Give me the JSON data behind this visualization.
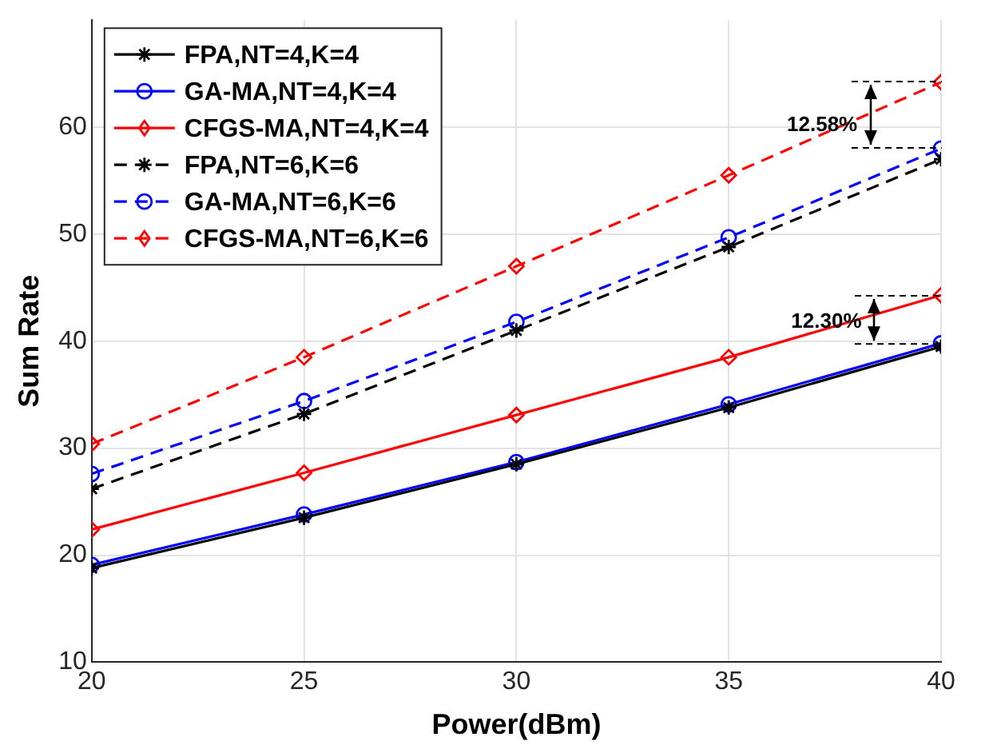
{
  "chart_data": {
    "type": "line",
    "xlabel": "Power(dBm)",
    "ylabel": "Sum Rate",
    "x": [
      20,
      25,
      30,
      35,
      40
    ],
    "xlim": [
      20,
      40
    ],
    "xticks": [
      20,
      25,
      30,
      35,
      40
    ],
    "ylim": [
      10,
      70
    ],
    "yticks": [
      10,
      20,
      30,
      40,
      50,
      60
    ],
    "grid": true,
    "legend": "top left",
    "series": [
      {
        "name": "FPA,NT=4,K=4",
        "color": "#000000",
        "marker": "cross",
        "line_style": "solid",
        "values": [
          18.8,
          23.5,
          28.5,
          33.8,
          39.5
        ]
      },
      {
        "name": "GA-MA,NT=4,K=4",
        "color": "#0000ff",
        "marker": "circle",
        "line_style": "solid",
        "values": [
          19.1,
          23.8,
          28.7,
          34.1,
          39.8
        ]
      },
      {
        "name": "CFGS-MA,NT=4,K=4",
        "color": "#ff0000",
        "marker": "diamond",
        "line_style": "solid",
        "values": [
          22.4,
          27.7,
          33.1,
          38.5,
          44.3
        ]
      },
      {
        "name": "FPA,NT=6,K=6",
        "color": "#000000",
        "marker": "cross",
        "line_style": "dashed",
        "values": [
          26.2,
          33.2,
          41.0,
          48.8,
          57.0
        ]
      },
      {
        "name": "GA-MA,NT=6,K=6",
        "color": "#0000ff",
        "marker": "circle",
        "line_style": "dashed",
        "values": [
          27.6,
          34.4,
          41.8,
          49.7,
          58.0
        ]
      },
      {
        "name": "CFGS-MA,NT=6,K=6",
        "color": "#ff0000",
        "marker": "diamond",
        "line_style": "dashed",
        "values": [
          30.4,
          38.5,
          47.0,
          55.5,
          64.2
        ]
      }
    ],
    "annotations": [
      {
        "text": "12.58%",
        "x": 37.2,
        "y": 60.2
      },
      {
        "text": "12.30%",
        "x": 37.3,
        "y": 41.8
      }
    ]
  }
}
